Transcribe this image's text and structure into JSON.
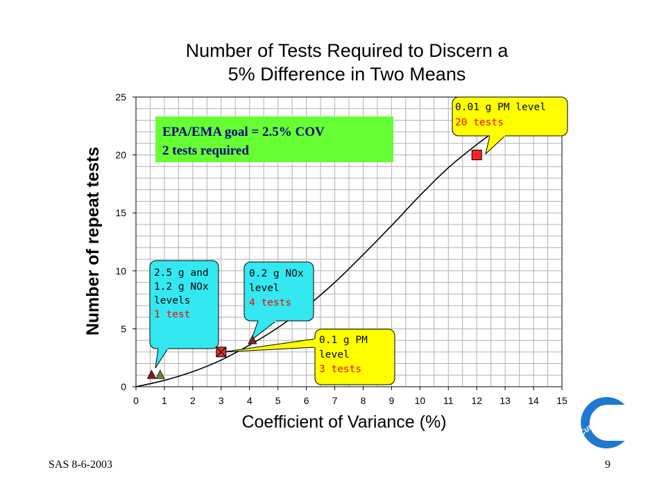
{
  "slide": {
    "footer_left": "SAS 8-6-2003",
    "page_number": "9",
    "logo_text": "Cummins"
  },
  "chart_data": {
    "type": "line",
    "title_lines": [
      "Number of Tests Required to Discern a",
      "5% Difference in Two Means"
    ],
    "xlabel": "Coefficient of Variance (%)",
    "ylabel": "Number of repeat tests",
    "xlim": [
      0,
      15
    ],
    "ylim": [
      0,
      25
    ],
    "x_ticks": [
      "0",
      "1",
      "2",
      "3",
      "4",
      "5",
      "6",
      "7",
      "8",
      "9",
      "10",
      "11",
      "12",
      "13",
      "14",
      "15"
    ],
    "y_ticks": [
      "0",
      "5",
      "10",
      "15",
      "20",
      "25"
    ],
    "grid": true,
    "curve": {
      "x": [
        0,
        1,
        2,
        3,
        4,
        5,
        6,
        7,
        8,
        9,
        10,
        11,
        12,
        12.5
      ],
      "y": [
        0,
        0.55,
        1.3,
        2.3,
        3.6,
        5.1,
        6.9,
        9.0,
        11.4,
        13.9,
        16.5,
        18.9,
        20.9,
        21.8
      ]
    },
    "points": [
      {
        "marker": "triangle",
        "color": "#8b1a1a",
        "x": 0.55,
        "y": 1.0
      },
      {
        "marker": "triangle",
        "color": "#6b8e23",
        "x": 0.85,
        "y": 1.0
      },
      {
        "marker": "triangle",
        "color": "#7b2d26",
        "x": 4.1,
        "y": 4.0
      },
      {
        "marker": "square-x",
        "color": "#e03030",
        "x": 3.0,
        "y": 3.0
      },
      {
        "marker": "square",
        "color": "#ff2020",
        "x": 12.0,
        "y": 20.0
      }
    ],
    "annotations": [
      {
        "fill": "#66ff33",
        "bold": true,
        "serif": true,
        "lines": [
          {
            "text": "EPA/EMA goal = 2.5% COV",
            "color": "#000080"
          },
          {
            "text": "2 tests required",
            "color": "#000080"
          }
        ]
      },
      {
        "fill": "#33e8f0",
        "lines": [
          {
            "text": "2.5 g and",
            "color": "#000"
          },
          {
            "text": "1.2 g NOx",
            "color": "#000"
          },
          {
            "text": "levels",
            "color": "#000"
          },
          {
            "text": "1 test",
            "color": "#ff0000"
          }
        ]
      },
      {
        "fill": "#33e8f0",
        "lines": [
          {
            "text": "0.2 g NOx",
            "color": "#000"
          },
          {
            "text": "level",
            "color": "#000"
          },
          {
            "text": "4 tests",
            "color": "#ff0000"
          }
        ]
      },
      {
        "fill": "#ffff00",
        "lines": [
          {
            "text": "0.1 g PM",
            "color": "#000"
          },
          {
            "text": "level",
            "color": "#000"
          },
          {
            "text": "3 tests",
            "color": "#ff0000"
          }
        ]
      },
      {
        "fill": "#ffff00",
        "lines": [
          {
            "text": "0.01 g PM level",
            "color": "#000"
          },
          {
            "text": "20 tests",
            "color": "#ff0000"
          }
        ]
      }
    ]
  },
  "colors": {
    "grid": "#b0b0b0",
    "curve": "#000000",
    "logo_blue": "#1e78d0"
  }
}
